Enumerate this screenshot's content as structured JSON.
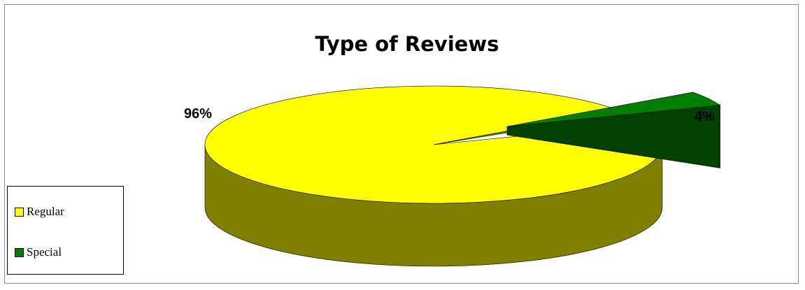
{
  "chart_data": {
    "type": "pie",
    "title": "Type of Reviews",
    "three_d": true,
    "categories": [
      "Regular",
      "Special"
    ],
    "values": [
      96,
      4
    ],
    "data_labels": [
      "96%",
      "4%"
    ],
    "colors": {
      "Regular": {
        "top": "#ffff00",
        "side": "#808000"
      },
      "Special": {
        "top": "#008000",
        "side": "#004000"
      }
    },
    "legend": {
      "position": "left-bottom",
      "entries": [
        {
          "label": "Regular",
          "color": "#ffff00"
        },
        {
          "label": "Special",
          "color": "#008000"
        }
      ]
    }
  }
}
